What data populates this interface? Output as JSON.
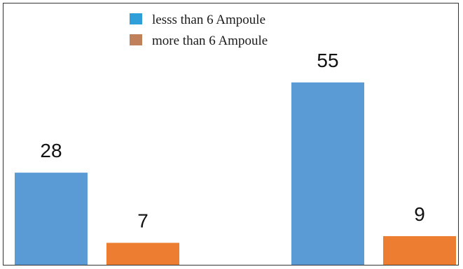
{
  "chart_data": {
    "type": "bar",
    "categories": [
      "",
      ""
    ],
    "series": [
      {
        "name": "lesss than 6 Ampoule",
        "values": [
          28,
          55
        ],
        "color": "#5b9bd5"
      },
      {
        "name": "more than 6 Ampoule",
        "values": [
          7,
          9
        ],
        "color": "#ed7d31"
      }
    ],
    "legend_swatch_colors": [
      "#2e9fd8",
      "#c0805a"
    ],
    "title": "",
    "xlabel": "",
    "ylabel": "",
    "ylim": [
      0,
      55
    ],
    "grid": false,
    "legend": "top-center",
    "data_labels": true
  }
}
